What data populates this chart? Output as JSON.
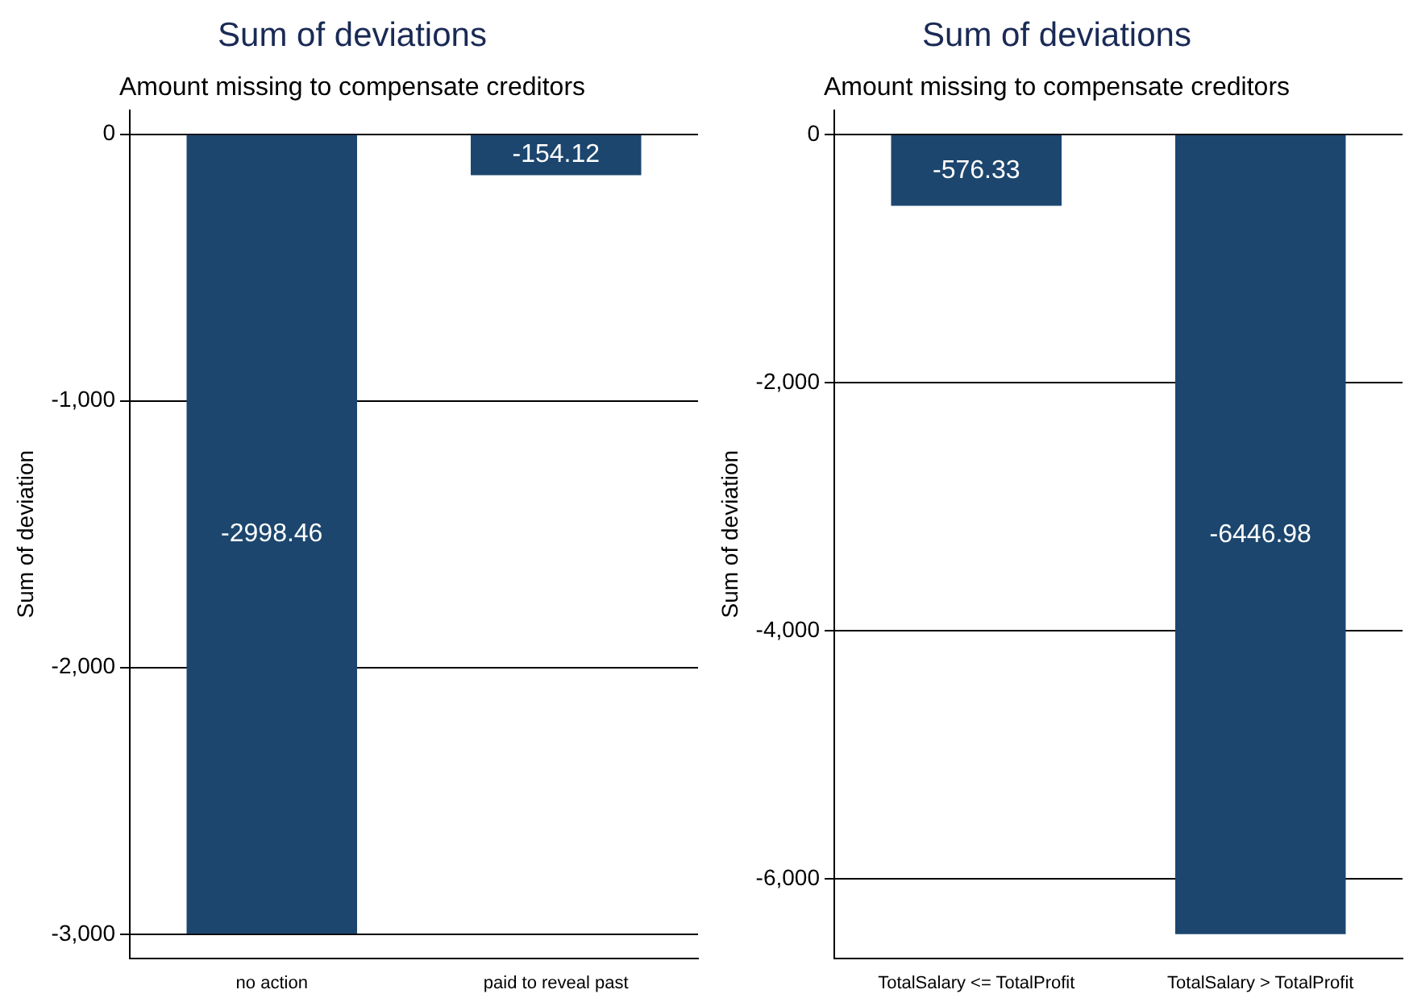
{
  "chart_data": [
    {
      "type": "bar",
      "title": "Sum of deviations",
      "subtitle": "Amount missing to compensate creditors",
      "ylabel": "Sum of deviation",
      "categories": [
        "no action",
        "paid to reveal past"
      ],
      "values": [
        -2998.46,
        -154.12
      ],
      "color": "#1c466e",
      "ylim": [
        -3090,
        90
      ],
      "yticks": [
        {
          "value": 0,
          "label": "0"
        },
        {
          "value": -1000,
          "label": "-1,000"
        },
        {
          "value": -2000,
          "label": "-2,000"
        },
        {
          "value": -3000,
          "label": "-3,000"
        }
      ],
      "grid": "y",
      "data_labels": true,
      "legend": false
    },
    {
      "type": "bar",
      "title": "Sum of deviations",
      "subtitle": "Amount missing to compensate creditors",
      "ylabel": "Sum of deviation",
      "categories": [
        "TotalSalary <= TotalProfit",
        "TotalSalary > TotalProfit"
      ],
      "values": [
        -576.33,
        -6446.98
      ],
      "color": "#1c466e",
      "ylim": [
        -6640,
        195
      ],
      "yticks": [
        {
          "value": 0,
          "label": "0"
        },
        {
          "value": -2000,
          "label": "-2,000"
        },
        {
          "value": -4000,
          "label": "-4,000"
        },
        {
          "value": -6000,
          "label": "-6,000"
        }
      ],
      "grid": "y",
      "data_labels": true,
      "legend": false
    }
  ]
}
